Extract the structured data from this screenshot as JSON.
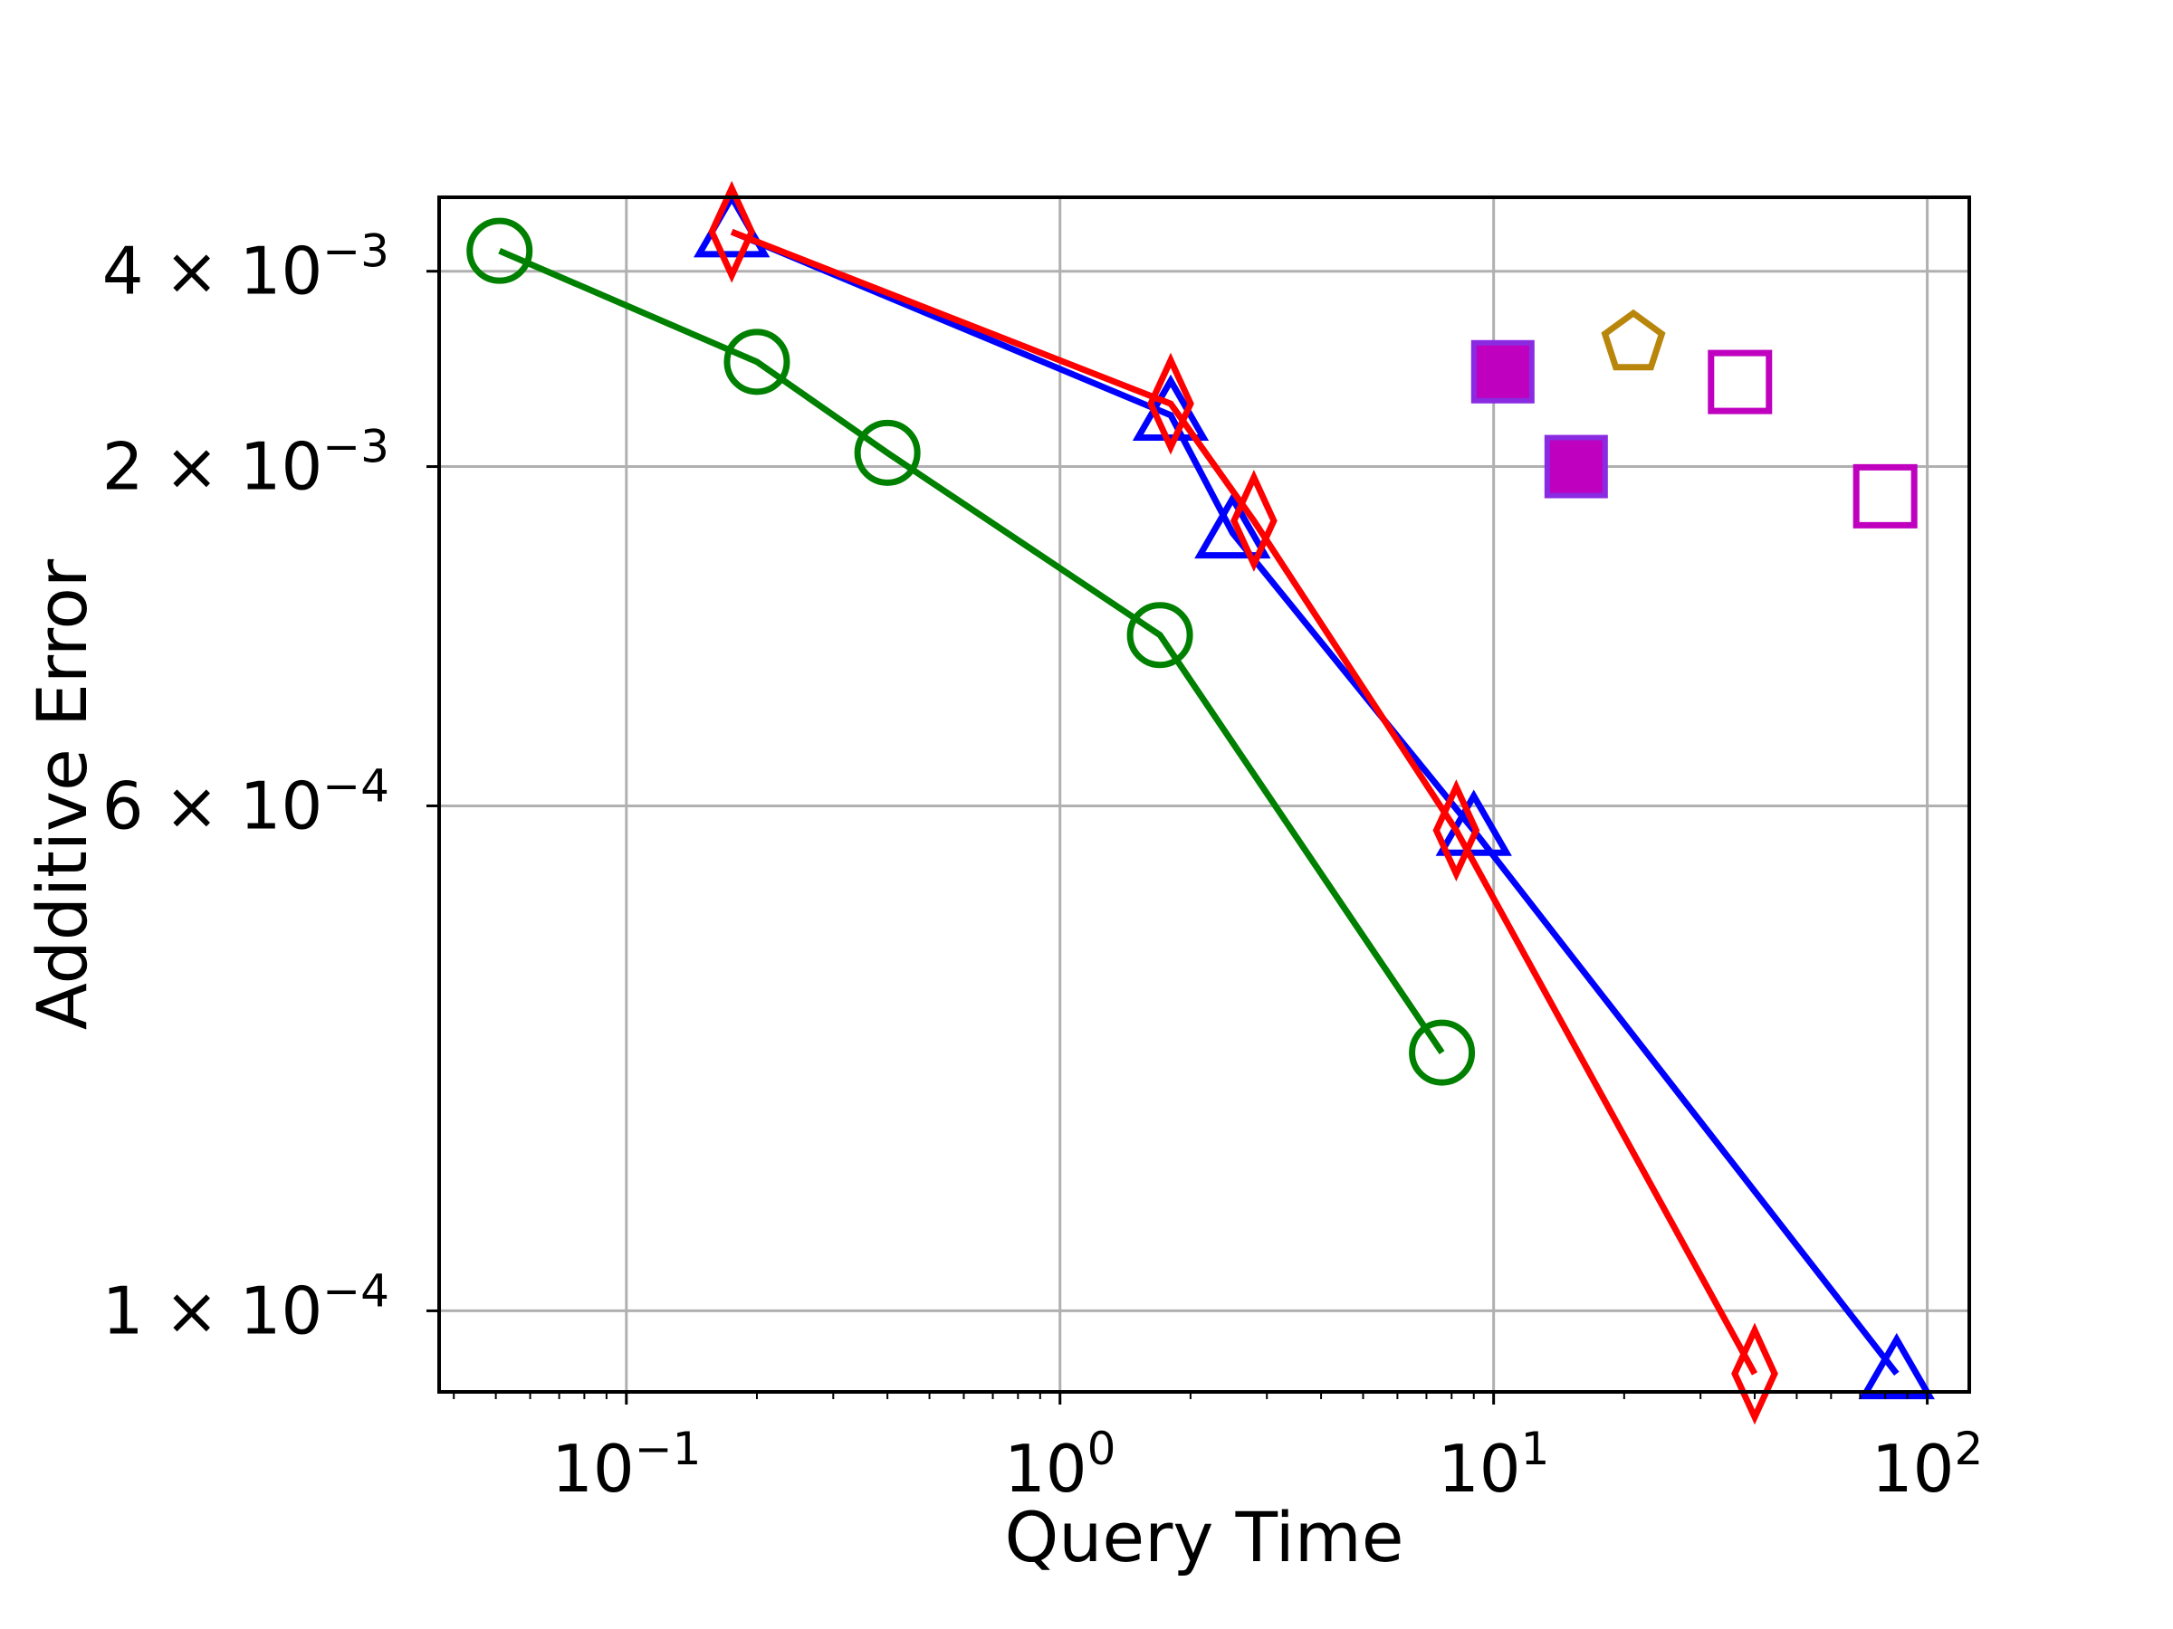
{
  "chart_data": {
    "type": "scatter",
    "xlabel": "Query Time",
    "ylabel": "Additive Error",
    "x_scale": "log",
    "y_scale": "log",
    "xlim": [
      0.037,
      125
    ],
    "ylim": [
      7.5e-05,
      0.0052
    ],
    "grid": true,
    "x_ticks": [
      {
        "value": 0.1,
        "base": "10",
        "exp": "−1"
      },
      {
        "value": 1,
        "base": "10",
        "exp": "0"
      },
      {
        "value": 10,
        "base": "10",
        "exp": "1"
      },
      {
        "value": 100,
        "base": "10",
        "exp": "2"
      }
    ],
    "y_ticks": [
      {
        "value": 0.0001,
        "mant": "1 × 10",
        "exp": "−4"
      },
      {
        "value": 0.0006,
        "mant": "6 × 10",
        "exp": "−4"
      },
      {
        "value": 0.002,
        "mant": "2 × 10",
        "exp": "−3"
      },
      {
        "value": 0.004,
        "mant": "4 × 10",
        "exp": "−3"
      }
    ],
    "series": [
      {
        "color": "#008000",
        "marker": "circle",
        "filled": false,
        "line": true,
        "points": [
          [
            0.051,
            0.0043
          ],
          [
            0.2,
            0.0029
          ],
          [
            0.4,
            0.0021
          ],
          [
            1.7,
            0.0011
          ],
          [
            7.6,
            0.00025
          ]
        ]
      },
      {
        "color": "#0000ff",
        "marker": "triangle",
        "filled": false,
        "line": true,
        "points": [
          [
            0.175,
            0.0046
          ],
          [
            1.8,
            0.0024
          ],
          [
            2.5,
            0.00158
          ],
          [
            9.0,
            0.00055
          ],
          [
            85,
            8e-05
          ]
        ]
      },
      {
        "color": "#ff0000",
        "marker": "diamond",
        "filled": false,
        "line": true,
        "points": [
          [
            0.175,
            0.0046
          ],
          [
            1.8,
            0.0025
          ],
          [
            2.8,
            0.00165
          ],
          [
            8.2,
            0.00055
          ],
          [
            40,
            8e-05
          ]
        ]
      },
      {
        "color": "#bf00bf",
        "marker": "square",
        "filled": true,
        "line": false,
        "points": [
          [
            10.5,
            0.0028
          ],
          [
            15.5,
            0.002
          ]
        ]
      },
      {
        "color": "#b8860b",
        "marker": "pentagon",
        "filled": false,
        "line": false,
        "points": [
          [
            21,
            0.0031
          ]
        ]
      },
      {
        "color": "#bf00bf",
        "marker": "square",
        "filled": false,
        "line": false,
        "points": [
          [
            37,
            0.0027
          ],
          [
            80,
            0.0018
          ]
        ]
      }
    ]
  }
}
